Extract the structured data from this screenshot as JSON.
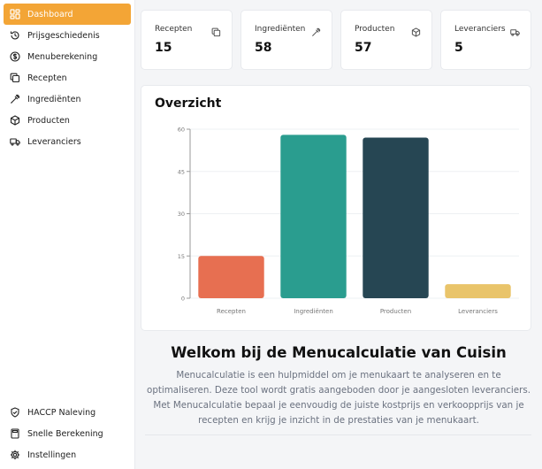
{
  "sidebar": {
    "items": [
      {
        "label": "Dashboard",
        "icon": "dashboard-icon",
        "active": true
      },
      {
        "label": "Prijsgeschiedenis",
        "icon": "history-icon"
      },
      {
        "label": "Menuberekening",
        "icon": "dollar-circle-icon"
      },
      {
        "label": "Recepten",
        "icon": "copy-icon"
      },
      {
        "label": "Ingrediënten",
        "icon": "pipette-icon"
      },
      {
        "label": "Producten",
        "icon": "package-icon"
      },
      {
        "label": "Leveranciers",
        "icon": "truck-icon"
      }
    ],
    "bottom_items": [
      {
        "label": "HACCP Naleving",
        "icon": "shield-check-icon"
      },
      {
        "label": "Snelle Berekening",
        "icon": "calculator-icon"
      },
      {
        "label": "Instellingen",
        "icon": "gear-icon"
      }
    ]
  },
  "stats": [
    {
      "label": "Recepten",
      "value": "15",
      "icon": "copy-icon"
    },
    {
      "label": "Ingrediënten",
      "value": "58",
      "icon": "pipette-icon"
    },
    {
      "label": "Producten",
      "value": "57",
      "icon": "package-icon"
    },
    {
      "label": "Leveranciers",
      "value": "5",
      "icon": "truck-icon"
    }
  ],
  "overview": {
    "title": "Overzicht"
  },
  "chart_data": {
    "type": "bar",
    "categories": [
      "Recepten",
      "Ingrediënten",
      "Producten",
      "Leveranciers"
    ],
    "values": [
      15,
      58,
      57,
      5
    ],
    "colors": [
      "#e76f51",
      "#2a9d8f",
      "#264653",
      "#e9c46a"
    ],
    "ylim": [
      0,
      60
    ],
    "yticks": [
      0,
      15,
      30,
      45,
      60
    ],
    "grid": true
  },
  "welcome": {
    "title": "Welkom bij de Menucalculatie van Cuisin",
    "text": "Menucalculatie is een hulpmiddel om je menukaart te analyseren en te optimaliseren. Deze tool wordt gratis aangeboden door je aangesloten leveranciers. Met Menucalculatie bepaal je eenvoudig de juiste kostprijs en verkoopprijs van je recepten en krijg je inzicht in de prestaties van je menukaart."
  },
  "colors": {
    "accent": "#f3a536"
  }
}
